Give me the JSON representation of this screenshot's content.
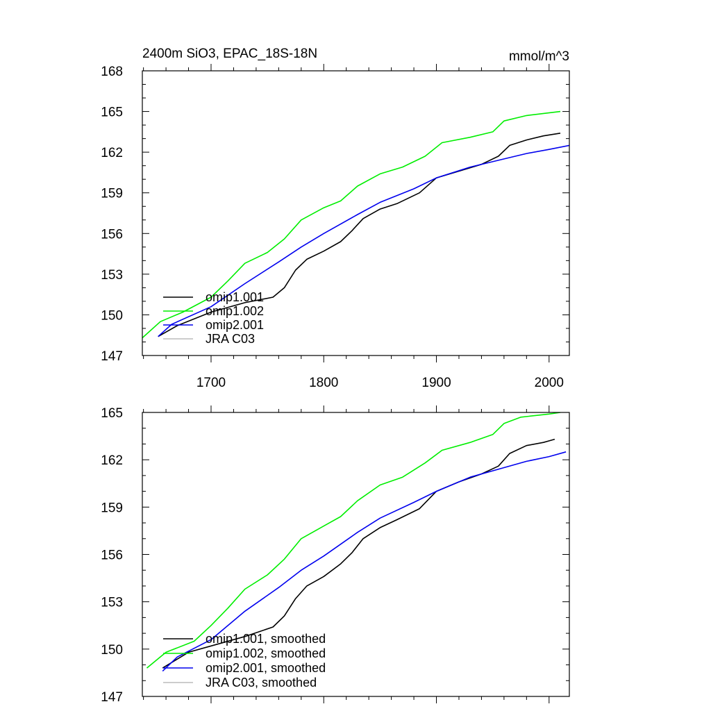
{
  "header": {
    "title": "2400m SiO3, EPAC_18S-18N",
    "units": "mmol/m^3"
  },
  "colors": {
    "omip1_001": "#000000",
    "omip1_002": "#00ee00",
    "omip2_001": "#0000ee",
    "jra_c03": "#bbbbbb",
    "axes": "#000000",
    "background": "#ffffff"
  },
  "chart_data": [
    {
      "type": "line",
      "panel": "top",
      "xlim": [
        1639,
        2018
      ],
      "ylim": [
        147,
        168
      ],
      "x_ticks": [
        1700,
        1800,
        1900,
        2000
      ],
      "x_tick_labels": [
        "1700",
        "1800",
        "1900",
        "2000"
      ],
      "y_ticks": [
        147,
        150,
        153,
        156,
        159,
        162,
        165,
        168
      ],
      "y_tick_labels": [
        "147",
        "150",
        "153",
        "156",
        "159",
        "162",
        "165",
        "168"
      ],
      "grid": false,
      "legend": "bottom-left",
      "series": [
        {
          "name": "omip1.001",
          "color_key": "omip1_001",
          "points": [
            [
              1653,
              148.4
            ],
            [
              1670,
              149.2
            ],
            [
              1700,
              150.2
            ],
            [
              1730,
              150.9
            ],
            [
              1755,
              151.3
            ],
            [
              1765,
              152.0
            ],
            [
              1775,
              153.3
            ],
            [
              1785,
              154.1
            ],
            [
              1800,
              154.7
            ],
            [
              1815,
              155.4
            ],
            [
              1825,
              156.2
            ],
            [
              1835,
              157.1
            ],
            [
              1850,
              157.8
            ],
            [
              1865,
              158.2
            ],
            [
              1885,
              159.0
            ],
            [
              1900,
              160.1
            ],
            [
              1920,
              160.6
            ],
            [
              1940,
              161.1
            ],
            [
              1955,
              161.7
            ],
            [
              1965,
              162.5
            ],
            [
              1980,
              162.9
            ],
            [
              1995,
              163.2
            ],
            [
              2010,
              163.4
            ]
          ]
        },
        {
          "name": "omip1.002",
          "color_key": "omip1_002",
          "points": [
            [
              1639,
              148.3
            ],
            [
              1655,
              149.5
            ],
            [
              1675,
              150.2
            ],
            [
              1700,
              151.3
            ],
            [
              1715,
              152.5
            ],
            [
              1730,
              153.8
            ],
            [
              1750,
              154.6
            ],
            [
              1765,
              155.6
            ],
            [
              1780,
              157.0
            ],
            [
              1800,
              157.9
            ],
            [
              1815,
              158.4
            ],
            [
              1830,
              159.5
            ],
            [
              1850,
              160.4
            ],
            [
              1870,
              160.9
            ],
            [
              1890,
              161.7
            ],
            [
              1905,
              162.7
            ],
            [
              1930,
              163.1
            ],
            [
              1950,
              163.5
            ],
            [
              1960,
              164.3
            ],
            [
              1980,
              164.7
            ],
            [
              2010,
              165.0
            ]
          ]
        },
        {
          "name": "omip2.001",
          "color_key": "omip2_001",
          "points": [
            [
              1653,
              148.4
            ],
            [
              1665,
              149.3
            ],
            [
              1700,
              150.6
            ],
            [
              1730,
              152.3
            ],
            [
              1760,
              153.9
            ],
            [
              1780,
              155.0
            ],
            [
              1800,
              156.0
            ],
            [
              1830,
              157.4
            ],
            [
              1850,
              158.3
            ],
            [
              1880,
              159.3
            ],
            [
              1900,
              160.1
            ],
            [
              1930,
              160.9
            ],
            [
              1960,
              161.5
            ],
            [
              1980,
              161.9
            ],
            [
              2000,
              162.2
            ],
            [
              2018,
              162.5
            ]
          ]
        },
        {
          "name": "JRA C03",
          "color_key": "jra_c03",
          "points": []
        }
      ]
    },
    {
      "type": "line",
      "panel": "bottom",
      "xlim": [
        1639,
        2018
      ],
      "ylim": [
        147,
        165
      ],
      "x_ticks": [
        1700,
        1800,
        1900,
        2000
      ],
      "y_ticks": [
        147,
        150,
        153,
        156,
        159,
        162,
        165
      ],
      "y_tick_labels": [
        "147",
        "150",
        "153",
        "156",
        "159",
        "162",
        "165"
      ],
      "grid": false,
      "legend": "bottom-left",
      "series": [
        {
          "name": "omip1.001, smoothed",
          "color_key": "omip1_001",
          "points": [
            [
              1657,
              148.8
            ],
            [
              1680,
              149.8
            ],
            [
              1700,
              150.2
            ],
            [
              1730,
              150.8
            ],
            [
              1755,
              151.4
            ],
            [
              1765,
              152.1
            ],
            [
              1775,
              153.2
            ],
            [
              1785,
              154.0
            ],
            [
              1800,
              154.6
            ],
            [
              1815,
              155.4
            ],
            [
              1825,
              156.1
            ],
            [
              1835,
              157.0
            ],
            [
              1850,
              157.7
            ],
            [
              1865,
              158.2
            ],
            [
              1885,
              158.9
            ],
            [
              1900,
              160.0
            ],
            [
              1920,
              160.6
            ],
            [
              1940,
              161.1
            ],
            [
              1955,
              161.6
            ],
            [
              1965,
              162.4
            ],
            [
              1980,
              162.9
            ],
            [
              1995,
              163.1
            ],
            [
              2005,
              163.3
            ]
          ]
        },
        {
          "name": "omip1.002, smoothed",
          "color_key": "omip1_002",
          "points": [
            [
              1643,
              148.8
            ],
            [
              1660,
              149.8
            ],
            [
              1685,
              150.5
            ],
            [
              1700,
              151.5
            ],
            [
              1715,
              152.6
            ],
            [
              1730,
              153.8
            ],
            [
              1750,
              154.7
            ],
            [
              1765,
              155.7
            ],
            [
              1780,
              157.0
            ],
            [
              1800,
              157.8
            ],
            [
              1815,
              158.4
            ],
            [
              1830,
              159.4
            ],
            [
              1850,
              160.4
            ],
            [
              1870,
              160.9
            ],
            [
              1890,
              161.8
            ],
            [
              1905,
              162.6
            ],
            [
              1930,
              163.1
            ],
            [
              1950,
              163.6
            ],
            [
              1960,
              164.3
            ],
            [
              1975,
              164.7
            ],
            [
              2000,
              164.9
            ],
            [
              2010,
              165.0
            ]
          ]
        },
        {
          "name": "omip2.001, smoothed",
          "color_key": "omip2_001",
          "points": [
            [
              1657,
              148.6
            ],
            [
              1670,
              149.5
            ],
            [
              1700,
              150.6
            ],
            [
              1730,
              152.4
            ],
            [
              1760,
              153.9
            ],
            [
              1780,
              155.0
            ],
            [
              1800,
              155.9
            ],
            [
              1830,
              157.4
            ],
            [
              1850,
              158.3
            ],
            [
              1880,
              159.3
            ],
            [
              1900,
              160.0
            ],
            [
              1930,
              160.9
            ],
            [
              1960,
              161.5
            ],
            [
              1980,
              161.9
            ],
            [
              2000,
              162.2
            ],
            [
              2015,
              162.5
            ]
          ]
        },
        {
          "name": "JRA C03, smoothed",
          "color_key": "jra_c03",
          "points": []
        }
      ]
    }
  ]
}
